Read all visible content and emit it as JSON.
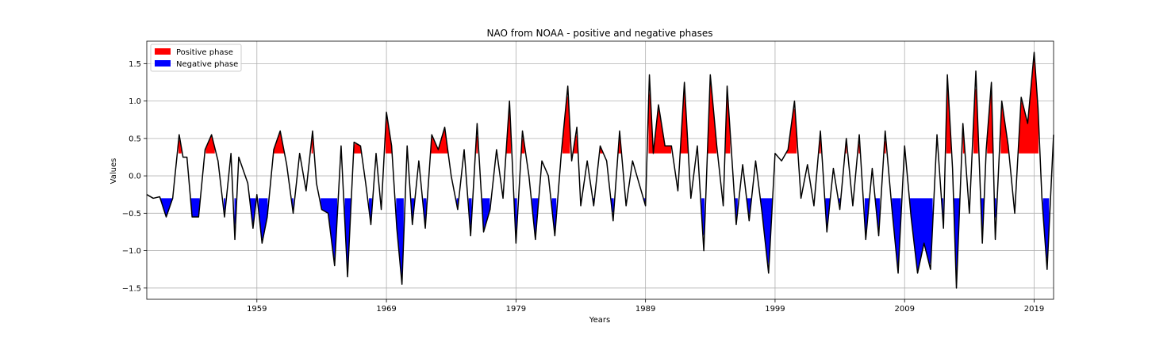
{
  "chart_data": {
    "type": "line",
    "title": "NAO from NOAA - positive and negative phases",
    "xlabel": "Years",
    "ylabel": "Values",
    "xlim": [
      1950.5,
      2020.5
    ],
    "ylim": [
      -1.65,
      1.8
    ],
    "xticks": [
      1959,
      1969,
      1979,
      1989,
      1999,
      2009,
      2019
    ],
    "xtick_labels": [
      "1959",
      "1969",
      "1979",
      "1989",
      "1999",
      "2009",
      "2019"
    ],
    "yticks": [
      -1.5,
      -1.0,
      -0.5,
      0.0,
      0.5,
      1.0,
      1.5
    ],
    "ytick_labels": [
      "−1.5",
      "−1.0",
      "−0.5",
      "0.0",
      "0.5",
      "1.0",
      "1.5"
    ],
    "grid": true,
    "legend_position": "upper-left",
    "thresholds": {
      "positive": 0.3,
      "negative": -0.3
    },
    "colors": {
      "positive": "#ff0000",
      "negative": "#0000ff",
      "line": "#000000",
      "grid": "#b0b0b0"
    },
    "legend": [
      {
        "label": "Positive phase",
        "color": "#ff0000"
      },
      {
        "label": "Negative phase",
        "color": "#0000ff"
      }
    ],
    "series": [
      {
        "x": [
          1950.5,
          1951.0,
          1951.5,
          1952.0,
          1952.5,
          1953.0,
          1953.3,
          1953.6,
          1954.0,
          1954.5,
          1955.0,
          1955.5,
          1956.0,
          1956.5,
          1957.0,
          1957.3,
          1957.6,
          1958.0,
          1958.3,
          1958.7,
          1959.0,
          1959.4,
          1959.8,
          1960.3,
          1960.8,
          1961.3,
          1961.8,
          1962.3,
          1962.8,
          1963.3,
          1963.6,
          1964.0,
          1964.5,
          1965.0,
          1965.5,
          1966.0,
          1966.5,
          1967.0,
          1967.4,
          1967.8,
          1968.2,
          1968.6,
          1969.0,
          1969.4,
          1969.8,
          1970.2,
          1970.6,
          1971.0,
          1971.5,
          1972.0,
          1972.5,
          1973.0,
          1973.5,
          1974.0,
          1974.5,
          1975.0,
          1975.5,
          1976.0,
          1976.5,
          1977.0,
          1977.5,
          1978.0,
          1978.5,
          1979.0,
          1979.5,
          1980.0,
          1980.5,
          1981.0,
          1981.5,
          1982.0,
          1982.5,
          1983.0,
          1983.3,
          1983.7,
          1984.0,
          1984.5,
          1985.0,
          1985.5,
          1986.0,
          1986.5,
          1987.0,
          1987.5,
          1988.0,
          1988.5,
          1989.0,
          1989.3,
          1989.6,
          1990.0,
          1990.5,
          1991.0,
          1991.5,
          1992.0,
          1992.5,
          1993.0,
          1993.5,
          1994.0,
          1994.5,
          1995.0,
          1995.3,
          1995.7,
          1996.0,
          1996.5,
          1997.0,
          1997.5,
          1998.0,
          1998.5,
          1999.0,
          1999.5,
          2000.0,
          2000.5,
          2001.0,
          2001.5,
          2002.0,
          2002.5,
          2003.0,
          2003.5,
          2004.0,
          2004.5,
          2005.0,
          2005.5,
          2006.0,
          2006.5,
          2007.0,
          2007.5,
          2008.0,
          2008.5,
          2009.0,
          2009.5,
          2010.0,
          2010.5,
          2011.0,
          2011.5,
          2012.0,
          2012.3,
          2012.7,
          2013.0,
          2013.5,
          2014.0,
          2014.5,
          2015.0,
          2015.3,
          2015.7,
          2016.0,
          2016.5,
          2017.0,
          2017.5,
          2018.0,
          2018.5,
          2019.0,
          2019.3,
          2019.6,
          2020.0,
          2020.5
        ],
        "y": [
          -0.25,
          -0.3,
          -0.28,
          -0.55,
          -0.3,
          0.55,
          0.25,
          0.25,
          -0.55,
          -0.55,
          0.35,
          0.55,
          0.2,
          -0.55,
          0.3,
          -0.85,
          0.25,
          0.05,
          -0.1,
          -0.7,
          -0.25,
          -0.9,
          -0.55,
          0.35,
          0.6,
          0.15,
          -0.5,
          0.3,
          -0.2,
          0.6,
          -0.1,
          -0.45,
          -0.5,
          -1.2,
          0.4,
          -1.35,
          0.45,
          0.4,
          -0.1,
          -0.65,
          0.3,
          -0.45,
          0.85,
          0.4,
          -0.7,
          -1.45,
          0.4,
          -0.65,
          0.2,
          -0.7,
          0.55,
          0.35,
          0.65,
          0.0,
          -0.45,
          0.35,
          -0.8,
          0.7,
          -0.75,
          -0.45,
          0.35,
          -0.3,
          1.0,
          -0.9,
          0.6,
          0.0,
          -0.85,
          0.2,
          0.0,
          -0.8,
          0.3,
          1.2,
          0.2,
          0.65,
          -0.4,
          0.2,
          -0.4,
          0.4,
          0.2,
          -0.6,
          0.6,
          -0.4,
          0.2,
          -0.1,
          -0.4,
          1.35,
          0.3,
          0.95,
          0.4,
          0.4,
          -0.2,
          1.25,
          -0.3,
          0.4,
          -1.0,
          1.35,
          0.4,
          -0.4,
          1.2,
          0.15,
          -0.65,
          0.15,
          -0.6,
          0.2,
          -0.5,
          -1.3,
          0.3,
          0.2,
          0.35,
          1.0,
          -0.3,
          0.15,
          -0.4,
          0.6,
          -0.75,
          0.1,
          -0.45,
          0.5,
          -0.4,
          0.55,
          -0.85,
          0.1,
          -0.8,
          0.6,
          -0.4,
          -1.3,
          0.4,
          -0.55,
          -1.3,
          -0.9,
          -1.25,
          0.55,
          -0.7,
          1.35,
          0.1,
          -1.5,
          0.7,
          -0.5,
          1.4,
          -0.9,
          0.35,
          1.25,
          -0.85,
          1.0,
          0.4,
          -0.5,
          1.05,
          0.7,
          1.65,
          0.9,
          -0.3,
          -1.25,
          0.55
        ]
      }
    ]
  }
}
